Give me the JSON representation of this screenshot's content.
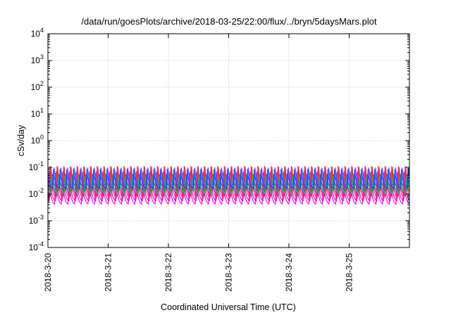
{
  "chart_data": {
    "type": "line",
    "title": "/data/run/goesPlots/archive/2018-03-25/22:00/flux/../bryn/5daysMars.plot",
    "xlabel": "Coordinated Universal Time (UTC)",
    "ylabel": "cSv/day",
    "y_scale": "log",
    "ylim": [
      0.0001,
      10000
    ],
    "y_ticks": [
      {
        "base": "10",
        "exp": "-4",
        "value": 0.0001
      },
      {
        "base": "10",
        "exp": "-3",
        "value": 0.001
      },
      {
        "base": "10",
        "exp": "-2",
        "value": 0.01
      },
      {
        "base": "10",
        "exp": "-1",
        "value": 0.1
      },
      {
        "base": "10",
        "exp": "0",
        "value": 1
      },
      {
        "base": "10",
        "exp": "1",
        "value": 10
      },
      {
        "base": "10",
        "exp": "2",
        "value": 100
      },
      {
        "base": "10",
        "exp": "3",
        "value": 1000
      },
      {
        "base": "10",
        "exp": "4",
        "value": 10000
      }
    ],
    "xlim": [
      "2018-03-20",
      "2018-03-26"
    ],
    "x_ticks": [
      "2018-3-20",
      "2018-3-21",
      "2018-3-22",
      "2018-3-23",
      "2018-3-24",
      "2018-3-25"
    ],
    "grid": true,
    "legend": "none",
    "periodic_pattern": {
      "cycles_per_day": 9,
      "description": "sawtooth: sharp rise to peak then exponential decay, repeating"
    },
    "series": [
      {
        "color": "#ff00ff",
        "peak": 0.06,
        "trough": 0.0042
      },
      {
        "color": "#c020c0",
        "peak": 0.07,
        "trough": 0.0055
      },
      {
        "color": "#ff3399",
        "peak": 0.11,
        "trough": 0.007
      },
      {
        "color": "#ff2020",
        "peak": 0.1,
        "trough": 0.0085
      },
      {
        "color": "#00c8c8",
        "peak": 0.045,
        "trough": 0.011
      },
      {
        "color": "#00aa00",
        "peak": 0.055,
        "trough": 0.013
      },
      {
        "color": "#3030ff",
        "peak": 0.085,
        "trough": 0.016
      },
      {
        "color": "#1e78ff",
        "peak": 0.095,
        "trough": 0.02
      }
    ]
  }
}
